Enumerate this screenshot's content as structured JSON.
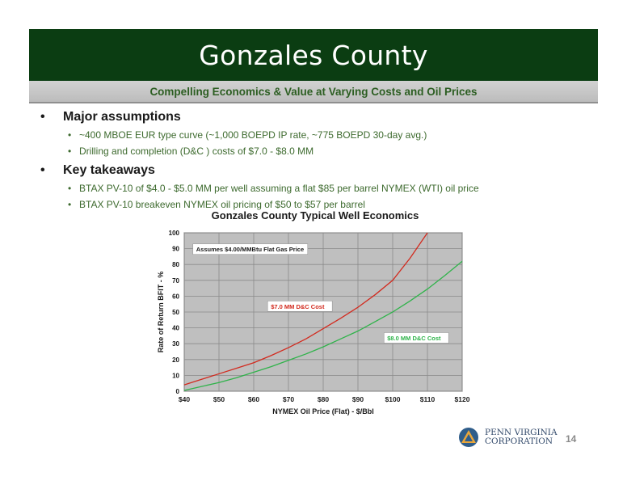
{
  "slide": {
    "title": "Gonzales County",
    "subtitle": "Compelling Economics & Value at Varying Costs and Oil Prices",
    "page_number": "14"
  },
  "bullets": [
    {
      "heading": "Major assumptions",
      "items": [
        "~400 MBOE EUR type curve (~1,000 BOEPD IP rate, ~775 BOEPD 30-day avg.)",
        "Drilling and completion (D&C ) costs of $7.0 - $8.0 MM"
      ]
    },
    {
      "heading": "Key takeaways",
      "items": [
        "BTAX PV-10 of $4.0 - $5.0 MM per well assuming a flat $85 per barrel NYMEX (WTI) oil price",
        "BTAX PV-10 breakeven NYMEX oil pricing of $50 to $57 per barrel"
      ]
    }
  ],
  "logo": {
    "line1": "PENN VIRGINIA",
    "line2": "CORPORATION",
    "icon": "triangle-logo-icon"
  },
  "chart_data": {
    "type": "line",
    "title": "Gonzales County Typical Well Economics",
    "xlabel": "NYMEX Oil Price (Flat) - $/Bbl",
    "ylabel": "Rate of Return BFIT - %",
    "xlim": [
      40,
      120
    ],
    "ylim": [
      0,
      100
    ],
    "x_ticks": [
      40,
      50,
      60,
      70,
      80,
      90,
      100,
      110,
      120
    ],
    "x_tick_labels": [
      "$40",
      "$50",
      "$60",
      "$70",
      "$80",
      "$90",
      "$100",
      "$110",
      "$120"
    ],
    "y_ticks": [
      0,
      10,
      20,
      30,
      40,
      50,
      60,
      70,
      80,
      90,
      100
    ],
    "grid": true,
    "annotation": "Assumes $4.00/MMBtu Flat Gas Price",
    "series": [
      {
        "name": "$7.0 MM D&C Cost",
        "color": "#d22a1e",
        "x": [
          40,
          45,
          50,
          55,
          60,
          65,
          70,
          75,
          80,
          85,
          90,
          95,
          100,
          105,
          110
        ],
        "y": [
          4,
          7.5,
          11,
          14.5,
          18,
          22.5,
          27.5,
          33,
          39.5,
          46,
          53,
          61,
          70,
          84,
          100
        ]
      },
      {
        "name": "$8.0 MM D&C Cost",
        "color": "#2fb34a",
        "x": [
          40,
          45,
          50,
          55,
          60,
          65,
          70,
          75,
          80,
          85,
          90,
          95,
          100,
          105,
          110,
          115,
          120
        ],
        "y": [
          0.5,
          3,
          5.5,
          8.5,
          12,
          15.5,
          19.5,
          23.5,
          28,
          33,
          38,
          44,
          50,
          57,
          64.5,
          73,
          82
        ]
      }
    ]
  }
}
